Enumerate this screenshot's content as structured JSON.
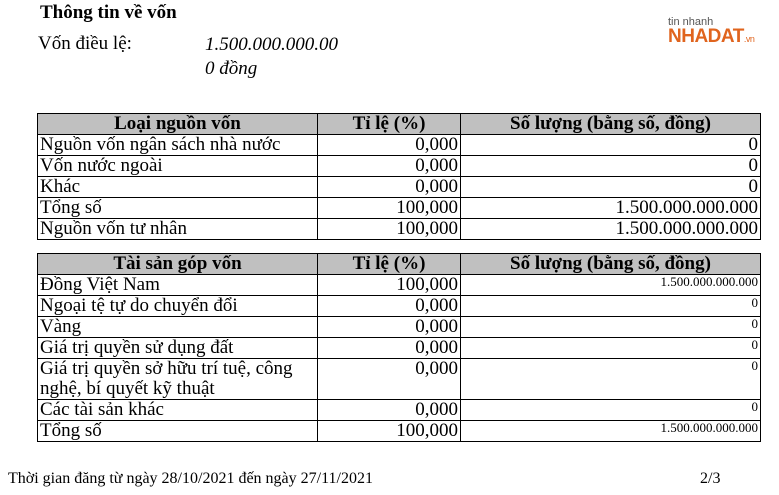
{
  "header": {
    "title": "Thông tin về vốn",
    "charter_label": "Vốn điều lệ:",
    "charter_value": "1.500.000.000.00",
    "charter_unit": "0 đồng"
  },
  "logo": {
    "line1": "tin nhanh",
    "brand": "NHADAT",
    "tld": ".vn"
  },
  "table1": {
    "headers": [
      "Loại nguồn vốn",
      "Tỉ lệ (%)",
      "Số lượng (bằng số, đồng)"
    ],
    "rows": [
      [
        "Nguồn vốn ngân sách nhà nước",
        "0,000",
        "0"
      ],
      [
        "Vốn nước ngoài",
        "0,000",
        "0"
      ],
      [
        "Khác",
        "0,000",
        "0"
      ],
      [
        "Tổng số",
        "100,000",
        "1.500.000.000.000"
      ],
      [
        "Nguồn vốn tư nhân",
        "100,000",
        "1.500.000.000.000"
      ]
    ]
  },
  "table2": {
    "headers": [
      "Tài sản góp vốn",
      "Tỉ lệ (%)",
      "Số lượng (bằng số, đồng)"
    ],
    "rows": [
      [
        "Đồng Việt Nam",
        "100,000",
        "1.500.000.000.000"
      ],
      [
        "Ngoại tệ tự do chuyển đổi",
        "0,000",
        "0"
      ],
      [
        "Vàng",
        "0,000",
        "0"
      ],
      [
        "Giá trị quyền sử dụng đất",
        "0,000",
        "0"
      ],
      [
        "Giá trị quyền sở hữu trí tuệ, công nghệ, bí quyết kỹ thuật",
        "0,000",
        "0"
      ],
      [
        "Các tài sản khác",
        "0,000",
        "0"
      ],
      [
        "Tổng số",
        "100,000",
        "1.500.000.000.000"
      ]
    ]
  },
  "footer": {
    "period": "Thời gian đăng  từ ngày 28/10/2021 đến ngày 27/11/2021",
    "page": "2/3"
  }
}
